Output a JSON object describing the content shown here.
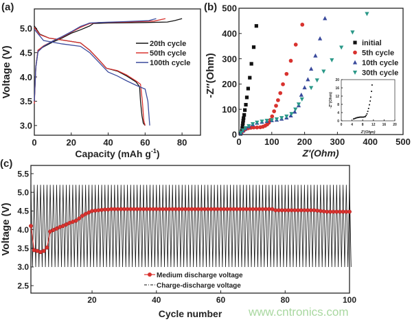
{
  "chart_data": [
    {
      "panel_label": "(a)",
      "type": "line",
      "xlabel": "Capacity (mAh g",
      "xlabel_sup": "-1",
      "xlabel_close": ")",
      "ylabel": "Voltage (V)",
      "xlim": [
        0,
        90
      ],
      "ylim": [
        2.8,
        5.4
      ],
      "xticks": [
        0,
        20,
        40,
        60,
        80
      ],
      "yticks": [
        3.0,
        3.5,
        4.0,
        4.5,
        5.0
      ],
      "xtick_labels": [
        "0",
        "20",
        "40",
        "60",
        "80"
      ],
      "ytick_labels": [
        "3.0",
        "3.5",
        "4.0",
        "4.5",
        "5.0"
      ],
      "legend_placement": "center-right",
      "series": [
        {
          "name": "20th cycle",
          "color": "#111111",
          "charge": [
            [
              0,
              3.5
            ],
            [
              0.8,
              4.2
            ],
            [
              2,
              4.55
            ],
            [
              5,
              4.62
            ],
            [
              10,
              4.72
            ],
            [
              15,
              4.8
            ],
            [
              20,
              4.9
            ],
            [
              25,
              4.97
            ],
            [
              30,
              5.05
            ],
            [
              32,
              5.1
            ],
            [
              40,
              5.11
            ],
            [
              60,
              5.12
            ],
            [
              72,
              5.13
            ],
            [
              76,
              5.16
            ],
            [
              80,
              5.2
            ]
          ],
          "discharge": [
            [
              0,
              5.05
            ],
            [
              3,
              4.88
            ],
            [
              8,
              4.8
            ],
            [
              15,
              4.76
            ],
            [
              25,
              4.7
            ],
            [
              30,
              4.55
            ],
            [
              35,
              4.35
            ],
            [
              39,
              4.18
            ],
            [
              45,
              4.12
            ],
            [
              50,
              4.02
            ],
            [
              55,
              3.9
            ],
            [
              57,
              3.8
            ],
            [
              57.5,
              3.5
            ],
            [
              58.3,
              3.2
            ],
            [
              59,
              3.05
            ],
            [
              60,
              3.0
            ]
          ]
        },
        {
          "name": "50th cycle",
          "color": "#d8322e",
          "charge": [
            [
              0,
              3.45
            ],
            [
              0.8,
              4.2
            ],
            [
              2,
              4.55
            ],
            [
              5,
              4.64
            ],
            [
              10,
              4.74
            ],
            [
              15,
              4.82
            ],
            [
              20,
              4.92
            ],
            [
              25,
              5.02
            ],
            [
              30,
              5.1
            ],
            [
              35,
              5.12
            ],
            [
              50,
              5.13
            ],
            [
              65,
              5.15
            ],
            [
              71,
              5.2
            ]
          ],
          "discharge": [
            [
              0,
              5.02
            ],
            [
              3,
              4.87
            ],
            [
              8,
              4.8
            ],
            [
              15,
              4.76
            ],
            [
              25,
              4.7
            ],
            [
              30,
              4.55
            ],
            [
              35,
              4.35
            ],
            [
              39,
              4.18
            ],
            [
              45,
              4.13
            ],
            [
              50,
              4.04
            ],
            [
              55,
              3.92
            ],
            [
              57.5,
              3.85
            ],
            [
              58.5,
              3.5
            ],
            [
              59.3,
              3.1
            ],
            [
              60,
              3.0
            ]
          ]
        },
        {
          "name": "100th cycle",
          "color": "#3a4a9c",
          "charge": [
            [
              0,
              3.5
            ],
            [
              0.8,
              4.2
            ],
            [
              2,
              4.52
            ],
            [
              5,
              4.63
            ],
            [
              10,
              4.74
            ],
            [
              15,
              4.83
            ],
            [
              20,
              4.93
            ],
            [
              25,
              5.04
            ],
            [
              30,
              5.11
            ],
            [
              35,
              5.12
            ],
            [
              50,
              5.14
            ],
            [
              62,
              5.16
            ],
            [
              66,
              5.2
            ]
          ],
          "discharge": [
            [
              0,
              4.98
            ],
            [
              5,
              4.75
            ],
            [
              15,
              4.68
            ],
            [
              25,
              4.63
            ],
            [
              30,
              4.5
            ],
            [
              35,
              4.3
            ],
            [
              40,
              4.1
            ],
            [
              45,
              4.02
            ],
            [
              50,
              3.92
            ],
            [
              55,
              3.83
            ],
            [
              60,
              3.75
            ],
            [
              61.5,
              3.5
            ],
            [
              62.3,
              3.1
            ],
            [
              62.5,
              3.0
            ]
          ]
        }
      ]
    },
    {
      "panel_label": "(b)",
      "type": "scatter",
      "xlabel": "Z′(Ohm)",
      "ylabel": "-Z″(Ohm)",
      "xlim": [
        0,
        500
      ],
      "ylim": [
        0,
        500
      ],
      "xticks": [
        0,
        100,
        200,
        300,
        400,
        500
      ],
      "yticks": [
        0,
        100,
        200,
        300,
        400,
        500
      ],
      "xtick_labels": [
        "0",
        "100",
        "200",
        "300",
        "400",
        "500"
      ],
      "ytick_labels": [
        "0",
        "100",
        "200",
        "300",
        "400",
        "500"
      ],
      "legend_placement": "center-right",
      "series": [
        {
          "name": "initial",
          "marker": "square",
          "color": "#111111",
          "points": [
            [
              5,
              3
            ],
            [
              7,
              8
            ],
            [
              9,
              15
            ],
            [
              10,
              25
            ],
            [
              11,
              35
            ],
            [
              12,
              45
            ],
            [
              13,
              55
            ],
            [
              14,
              65
            ],
            [
              16,
              78
            ],
            [
              18,
              97
            ],
            [
              21,
              118
            ],
            [
              24,
              147
            ],
            [
              28,
              182
            ],
            [
              33,
              225
            ],
            [
              38,
              280
            ],
            [
              45,
              346
            ],
            [
              53,
              430
            ]
          ]
        },
        {
          "name": "5th cycle",
          "marker": "circle",
          "color": "#d8322e",
          "points": [
            [
              8,
              8
            ],
            [
              14,
              15
            ],
            [
              20,
              21
            ],
            [
              28,
              25
            ],
            [
              36,
              27
            ],
            [
              45,
              28
            ],
            [
              55,
              28
            ],
            [
              65,
              29
            ],
            [
              73,
              31
            ],
            [
              80,
              35
            ],
            [
              86,
              40
            ],
            [
              91,
              47
            ],
            [
              96,
              58
            ],
            [
              101,
              72
            ],
            [
              107,
              92
            ],
            [
              113,
              114
            ],
            [
              119,
              136
            ],
            [
              126,
              164
            ],
            [
              134,
              199
            ],
            [
              145,
              240
            ],
            [
              158,
              292
            ],
            [
              173,
              356
            ],
            [
              193,
              435
            ]
          ]
        },
        {
          "name": "10th cycle",
          "marker": "triangle-up",
          "color": "#3a4a9c",
          "points": [
            [
              6,
              6
            ],
            [
              12,
              15
            ],
            [
              20,
              24
            ],
            [
              30,
              32
            ],
            [
              42,
              40
            ],
            [
              55,
              46
            ],
            [
              70,
              50
            ],
            [
              85,
              53
            ],
            [
              100,
              56
            ],
            [
              115,
              58
            ],
            [
              130,
              62
            ],
            [
              145,
              67
            ],
            [
              158,
              75
            ],
            [
              170,
              90
            ],
            [
              182,
              115
            ],
            [
              190,
              157
            ],
            [
              200,
              186
            ],
            [
              210,
              218
            ],
            [
              220,
              260
            ],
            [
              233,
              312
            ],
            [
              247,
              380
            ],
            [
              262,
              460
            ]
          ]
        },
        {
          "name": "30th cycle",
          "marker": "triangle-down",
          "color": "#2a9888",
          "points": [
            [
              6,
              7
            ],
            [
              12,
              17
            ],
            [
              20,
              26
            ],
            [
              30,
              34
            ],
            [
              42,
              42
            ],
            [
              55,
              48
            ],
            [
              70,
              52
            ],
            [
              85,
              55
            ],
            [
              100,
              57
            ],
            [
              115,
              61
            ],
            [
              130,
              66
            ],
            [
              145,
              72
            ],
            [
              160,
              82
            ],
            [
              172,
              100
            ],
            [
              182,
              120
            ],
            [
              192,
              140
            ],
            [
              220,
              185
            ],
            [
              238,
              215
            ],
            [
              258,
              250
            ],
            [
              283,
              295
            ],
            [
              312,
              345
            ],
            [
              346,
              405
            ],
            [
              390,
              478
            ]
          ]
        }
      ],
      "inset": {
        "xlabel": "Z′(Ohm)",
        "ylabel": "-Z″(Ohm)",
        "xlim": [
          0,
          20
        ],
        "ylim": [
          0,
          20
        ],
        "xticks": [
          0,
          4,
          8,
          12,
          16,
          20
        ],
        "yticks": [
          0,
          4,
          8,
          12,
          16,
          20
        ],
        "xtick_labels": [
          "0",
          "4",
          "8",
          "12",
          "16",
          "20"
        ],
        "ytick_labels": [
          "0",
          "4",
          "8",
          "12",
          "16",
          "20"
        ],
        "marker": "square",
        "color": "#111111",
        "points": [
          [
            4.6,
            0.9
          ],
          [
            5,
            1.1
          ],
          [
            5.4,
            1.3
          ],
          [
            5.8,
            1.5
          ],
          [
            6.2,
            1.6
          ],
          [
            6.6,
            1.7
          ],
          [
            7,
            1.8
          ],
          [
            7.4,
            1.8
          ],
          [
            7.8,
            1.8
          ],
          [
            8.2,
            1.8
          ],
          [
            8.6,
            1.9
          ],
          [
            9,
            2.1
          ],
          [
            9.3,
            2.6
          ],
          [
            9.6,
            3.4
          ],
          [
            9.9,
            4.6
          ],
          [
            10.2,
            6
          ],
          [
            10.5,
            7.8
          ],
          [
            10.8,
            9.6
          ],
          [
            11,
            11.5
          ],
          [
            11.3,
            14.3
          ],
          [
            11.5,
            17.4
          ]
        ]
      }
    },
    {
      "panel_label": "(c)",
      "type": "line",
      "xlabel": "Cycle number",
      "ylabel": "Voltage (V)",
      "xlim": [
        1,
        100
      ],
      "ylim": [
        2.3,
        5.72
      ],
      "xticks": [
        20,
        40,
        60,
        80,
        100
      ],
      "yticks": [
        2.5,
        3.0,
        3.5,
        4.0,
        4.5,
        5.0,
        5.5
      ],
      "xtick_labels": [
        "20",
        "40",
        "60",
        "80",
        "100"
      ],
      "ytick_labels": [
        "2.5",
        "3.0",
        "3.5",
        "4.0",
        "4.5",
        "5.0",
        "5.5"
      ],
      "legend_placement": "bottom-center",
      "series": [
        {
          "name": "Medium discharge voltage",
          "marker": "circle",
          "color": "#d8322e",
          "x_start": 1,
          "values": [
            4.1,
            3.45,
            3.43,
            3.4,
            3.43,
            3.52,
            3.95,
            3.99,
            4.03,
            4.07,
            4.1,
            4.14,
            4.18,
            4.21,
            4.24,
            4.3,
            4.37,
            4.42,
            4.46,
            4.5,
            4.51,
            4.52,
            4.53,
            4.54,
            4.54,
            4.55,
            4.55,
            4.55,
            4.55,
            4.55,
            4.55,
            4.55,
            4.55,
            4.55,
            4.55,
            4.55,
            4.55,
            4.55,
            4.55,
            4.55,
            4.55,
            4.55,
            4.55,
            4.55,
            4.55,
            4.55,
            4.55,
            4.55,
            4.55,
            4.55,
            4.55,
            4.55,
            4.55,
            4.55,
            4.55,
            4.55,
            4.55,
            4.55,
            4.55,
            4.55,
            4.55,
            4.55,
            4.55,
            4.55,
            4.55,
            4.55,
            4.55,
            4.55,
            4.55,
            4.55,
            4.55,
            4.55,
            4.55,
            4.55,
            4.55,
            4.55,
            4.52,
            4.52,
            4.52,
            4.52,
            4.52,
            4.52,
            4.52,
            4.52,
            4.52,
            4.52,
            4.52,
            4.52,
            4.52,
            4.51,
            4.5,
            4.49,
            4.48,
            4.48,
            4.48,
            4.48,
            4.48,
            4.48,
            4.48,
            4.48
          ]
        },
        {
          "name": "Charge-discharge voltage",
          "style": "dash-dot",
          "color": "#111111",
          "cycles": 100,
          "upper_cutoff": 5.2,
          "lower_cutoff": 3.0
        }
      ]
    }
  ],
  "watermark": "www.cntronics.com"
}
